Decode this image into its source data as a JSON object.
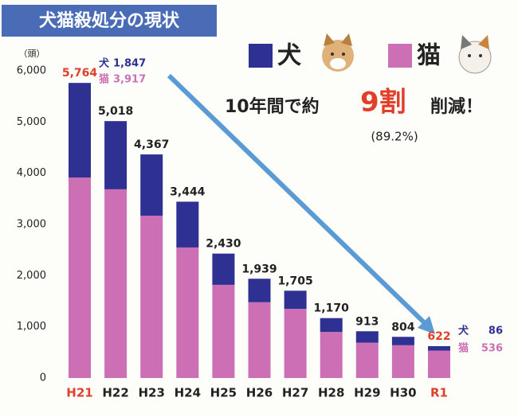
{
  "chart_data": {
    "type": "stacked_bar",
    "title": "犬猫殺処分の現状",
    "y_unit": "（頭）",
    "categories": [
      "H21",
      "H22",
      "H23",
      "H24",
      "H25",
      "H26",
      "H27",
      "H28",
      "H29",
      "H30",
      "R1"
    ],
    "series": [
      {
        "name": "犬",
        "color": "#2e3192",
        "values": [
          1847,
          1332,
          1197,
          894,
          610,
          459,
          355,
          270,
          223,
          164,
          86
        ],
        "value_labels": [
          "1,847",
          null,
          null,
          null,
          null,
          null,
          null,
          null,
          null,
          null,
          "86"
        ]
      },
      {
        "name": "猫",
        "color": "#cc6fb5",
        "values": [
          3917,
          3686,
          3170,
          2550,
          1820,
          1480,
          1350,
          900,
          690,
          640,
          536
        ],
        "value_labels": [
          "3,917",
          null,
          null,
          null,
          null,
          null,
          null,
          null,
          null,
          null,
          "536"
        ]
      }
    ],
    "totals": {
      "values": [
        5764,
        5018,
        4367,
        3444,
        2430,
        1939,
        1705,
        1170,
        913,
        804,
        622
      ],
      "value_labels": [
        "5,764",
        "5,018",
        "4,367",
        "3,444",
        "2,430",
        "1,939",
        "1,705",
        "1,170",
        "913",
        "804",
        "622"
      ]
    },
    "highlight": [
      true,
      false,
      false,
      false,
      false,
      false,
      false,
      false,
      false,
      false,
      true
    ],
    "highlight_color": "#e0402a",
    "ylim": [
      0,
      6000
    ],
    "yticks": [
      0,
      {
        "value": 1000,
        "label": "1,000"
      },
      {
        "value": 2000,
        "label": "2,000"
      },
      {
        "value": 3000,
        "label": "3,000"
      },
      {
        "value": 4000,
        "label": "4,000"
      },
      {
        "value": 5000,
        "label": "5,000"
      },
      {
        "value": 6000,
        "label": "6,000"
      }
    ],
    "annotation": {
      "lead": "10年間で約",
      "emphasis": "9割",
      "tail": "削減！",
      "note": "(89.2%)"
    }
  }
}
